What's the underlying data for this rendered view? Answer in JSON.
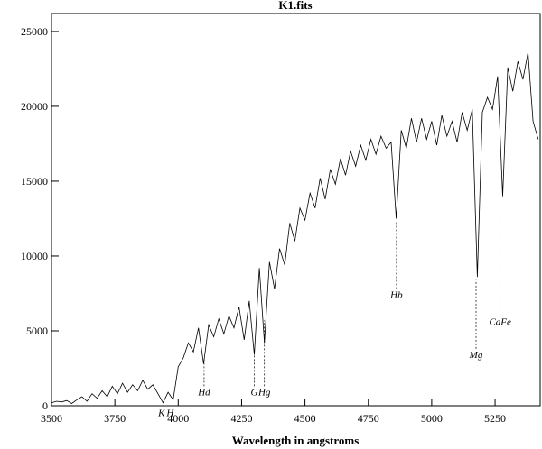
{
  "chart_data": {
    "type": "line",
    "title": "K1.fits",
    "x_label": "Wavelength in angstroms",
    "x": [
      3500,
      3520,
      3540,
      3560,
      3580,
      3600,
      3620,
      3640,
      3660,
      3680,
      3700,
      3720,
      3740,
      3760,
      3780,
      3800,
      3820,
      3840,
      3860,
      3880,
      3900,
      3920,
      3940,
      3960,
      3980,
      4000,
      4020,
      4040,
      4060,
      4080,
      4100,
      4120,
      4140,
      4160,
      4180,
      4200,
      4220,
      4240,
      4260,
      4280,
      4300,
      4320,
      4340,
      4360,
      4380,
      4400,
      4420,
      4440,
      4460,
      4480,
      4500,
      4520,
      4540,
      4560,
      4580,
      4600,
      4620,
      4640,
      4660,
      4680,
      4700,
      4720,
      4740,
      4760,
      4780,
      4800,
      4820,
      4840,
      4860,
      4880,
      4900,
      4920,
      4940,
      4960,
      4980,
      5000,
      5020,
      5040,
      5060,
      5080,
      5100,
      5120,
      5140,
      5160,
      5180,
      5200,
      5220,
      5240,
      5260,
      5280,
      5300,
      5320,
      5340,
      5360,
      5380,
      5400,
      5420
    ],
    "series": [
      {
        "color": "#000000",
        "values": [
          200,
          300,
          250,
          350,
          150,
          400,
          600,
          300,
          800,
          500,
          1000,
          600,
          1300,
          800,
          1500,
          900,
          1400,
          1000,
          1700,
          1100,
          1400,
          800,
          200,
          900,
          400,
          2600,
          3200,
          4200,
          3600,
          5200,
          2800,
          5400,
          4600,
          5800,
          4800,
          6000,
          5200,
          6600,
          4400,
          7000,
          3400,
          9200,
          4200,
          9600,
          7800,
          10500,
          9400,
          12200,
          11000,
          13200,
          12400,
          14200,
          13200,
          15200,
          13800,
          15800,
          14800,
          16500,
          15400,
          17000,
          16000,
          17400,
          16400,
          17800,
          16800,
          18000,
          17200,
          17600,
          12500,
          18400,
          17200,
          19200,
          17600,
          19200,
          17800,
          19000,
          17400,
          19400,
          18000,
          19000,
          17600,
          19600,
          18400,
          19800,
          8600,
          19600,
          20600,
          19800,
          22000,
          14000,
          22600,
          21000,
          23000,
          21800,
          23600,
          19000,
          17800
        ]
      }
    ],
    "xlim": [
      3500,
      5428
    ],
    "ylim": [
      0,
      26200
    ],
    "xticks": [
      3500,
      3750,
      4000,
      4250,
      4500,
      4750,
      5000,
      5250
    ],
    "yticks": [
      0,
      5000,
      10000,
      15000,
      20000,
      25000
    ],
    "annotations": [
      {
        "label": "K",
        "x": 3934,
        "y": -700,
        "line_top": -700
      },
      {
        "label": "H",
        "x": 3968,
        "y": -700,
        "line_top": -700
      },
      {
        "label": "Hd",
        "x": 4102,
        "y": 700,
        "line_top": 3200
      },
      {
        "label": "G",
        "x": 4300,
        "y": 700,
        "line_top": 3400
      },
      {
        "label": "Hg",
        "x": 4340,
        "y": 700,
        "line_top": 5700
      },
      {
        "label": "Hb",
        "x": 4861,
        "y": 7200,
        "line_top": 12300
      },
      {
        "label": "Mg",
        "x": 5175,
        "y": 3200,
        "line_top": 8400
      },
      {
        "label": "CaFe",
        "x": 5270,
        "y": 5400,
        "line_top": 13000
      }
    ]
  }
}
